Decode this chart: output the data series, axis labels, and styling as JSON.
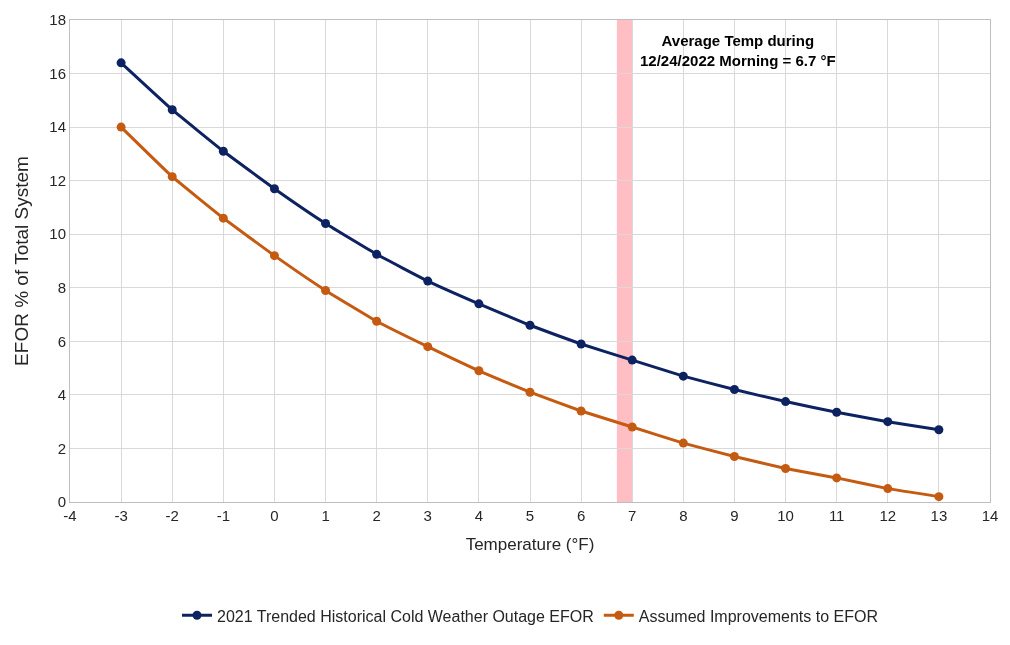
{
  "chart_data": {
    "type": "line",
    "xlabel": "Temperature (°F)",
    "ylabel": "EFOR % of Total System",
    "x": [
      -3,
      -2,
      -1,
      0,
      1,
      2,
      3,
      4,
      5,
      6,
      7,
      8,
      9,
      10,
      11,
      12,
      13
    ],
    "series": [
      {
        "name": "2021 Trended Historical Cold Weather Outage EFOR",
        "color": "#0d2260",
        "values": [
          16.4,
          14.65,
          13.1,
          11.7,
          10.4,
          9.25,
          8.25,
          7.4,
          6.6,
          5.9,
          5.3,
          4.7,
          4.2,
          3.75,
          3.35,
          3.0,
          2.7
        ]
      },
      {
        "name": "Assumed Improvements to EFOR",
        "color": "#c55a11",
        "values": [
          14.0,
          12.15,
          10.6,
          9.2,
          7.9,
          6.75,
          5.8,
          4.9,
          4.1,
          3.4,
          2.8,
          2.2,
          1.7,
          1.25,
          0.9,
          0.5,
          0.2
        ]
      }
    ],
    "bands": [
      {
        "axis": "x",
        "from": 6.7,
        "to": 7.0,
        "color": "#ffb3b8",
        "label": "Average Temp during\n12/24/2022 Morning = 6.7 °F"
      }
    ],
    "xlim": [
      -4,
      14
    ],
    "xticks": [
      -4,
      -3,
      -2,
      -1,
      0,
      1,
      2,
      3,
      4,
      5,
      6,
      7,
      8,
      9,
      10,
      11,
      12,
      13,
      14
    ],
    "ylim": [
      0,
      18
    ],
    "yticks": [
      0,
      2,
      4,
      6,
      8,
      10,
      12,
      14,
      16,
      18
    ],
    "grid": true,
    "legend": "bottom",
    "marker": "circle",
    "line_style": "solid"
  }
}
